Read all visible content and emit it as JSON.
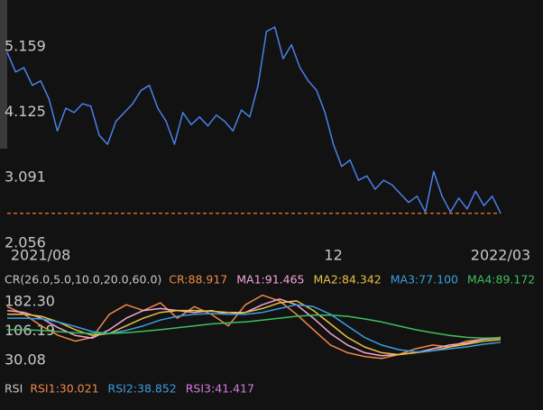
{
  "chart_data": [
    {
      "type": "line",
      "categories": [
        null,
        null,
        null,
        null,
        "2021/08",
        null,
        null,
        null,
        null,
        null,
        null,
        null,
        null,
        null,
        null,
        null,
        null,
        null,
        null,
        null,
        null,
        null,
        null,
        null,
        null,
        null,
        null,
        null,
        null,
        null,
        null,
        null,
        null,
        null,
        null,
        null,
        null,
        null,
        null,
        "12",
        null,
        null,
        null,
        null,
        null,
        null,
        null,
        null,
        null,
        null,
        null,
        null,
        null,
        null,
        null,
        null,
        null,
        null,
        null,
        "2022/03"
      ],
      "series": [
        {
          "color": "#4a80e8",
          "values": [
            5.07,
            4.76,
            4.83,
            4.55,
            4.62,
            4.33,
            3.83,
            4.19,
            4.12,
            4.26,
            4.22,
            3.76,
            3.62,
            3.98,
            4.12,
            4.26,
            4.47,
            4.55,
            4.19,
            3.98,
            3.62,
            4.12,
            3.93,
            4.05,
            3.91,
            4.08,
            3.98,
            3.83,
            4.16,
            4.05,
            4.55,
            5.4,
            5.47,
            4.97,
            5.19,
            4.83,
            4.62,
            4.47,
            4.12,
            3.62,
            3.27,
            3.37,
            3.05,
            3.12,
            2.91,
            3.05,
            2.98,
            2.84,
            2.7,
            2.8,
            2.55,
            3.19,
            2.8,
            2.55,
            2.77,
            2.6,
            2.88,
            2.65,
            2.8,
            2.53
          ]
        }
      ],
      "ylim": [
        2.056,
        5.47
      ],
      "yticks": [
        2.056,
        3.091,
        4.125,
        5.159
      ],
      "reference_line": {
        "value": 2.53,
        "color": "#e0702a",
        "dashed": true
      }
    },
    {
      "type": "line",
      "title": "CR(26.0,5.0,10.0,20.0,60.0)",
      "series": [
        {
          "name": "CR:88.917",
          "color": "#f0884a",
          "values": [
            170,
            150,
            120,
            95,
            80,
            90,
            150,
            175,
            160,
            180,
            140,
            170,
            150,
            120,
            175,
            200,
            185,
            150,
            110,
            70,
            50,
            40,
            35,
            45,
            60,
            70,
            65,
            80,
            85,
            88
          ]
        },
        {
          "name": "MA1:91.465",
          "color": "#f3a6d6",
          "values": [
            160,
            155,
            140,
            115,
            95,
            88,
            110,
            140,
            160,
            165,
            160,
            155,
            160,
            150,
            155,
            175,
            190,
            175,
            140,
            100,
            70,
            50,
            42,
            45,
            50,
            60,
            70,
            75,
            85,
            90
          ]
        },
        {
          "name": "MA2:84.342",
          "color": "#e9c043",
          "values": [
            150,
            150,
            145,
            130,
            110,
            95,
            100,
            120,
            140,
            155,
            160,
            160,
            158,
            155,
            155,
            165,
            180,
            185,
            160,
            125,
            90,
            65,
            50,
            45,
            50,
            55,
            65,
            72,
            80,
            84
          ]
        },
        {
          "name": "MA3:77.100",
          "color": "#3a9ee0",
          "values": [
            140,
            140,
            138,
            130,
            118,
            105,
            100,
            108,
            120,
            135,
            145,
            150,
            152,
            150,
            150,
            155,
            165,
            175,
            170,
            150,
            120,
            90,
            70,
            58,
            52,
            55,
            60,
            65,
            72,
            77
          ]
        },
        {
          "name": "MA4:89.172",
          "color": "#3fbf5c",
          "values": [
            110,
            110,
            108,
            105,
            102,
            100,
            100,
            102,
            106,
            110,
            115,
            120,
            125,
            128,
            130,
            135,
            140,
            145,
            148,
            148,
            145,
            138,
            130,
            120,
            110,
            102,
            95,
            90,
            88,
            89
          ]
        }
      ],
      "ylim": [
        18,
        206
      ],
      "yticks": [
        30.08,
        106.19,
        {
          "value": 182.3,
          "label": "182.30"
        }
      ]
    }
  ],
  "rsi_panel": {
    "title": "RSI",
    "labels": [
      {
        "text": "RSI1:30.021",
        "color": "#f0884a"
      },
      {
        "text": "RSI2:38.852",
        "color": "#3a9ee0"
      },
      {
        "text": "RSI3:41.417",
        "color": "#d67ae0"
      }
    ]
  }
}
